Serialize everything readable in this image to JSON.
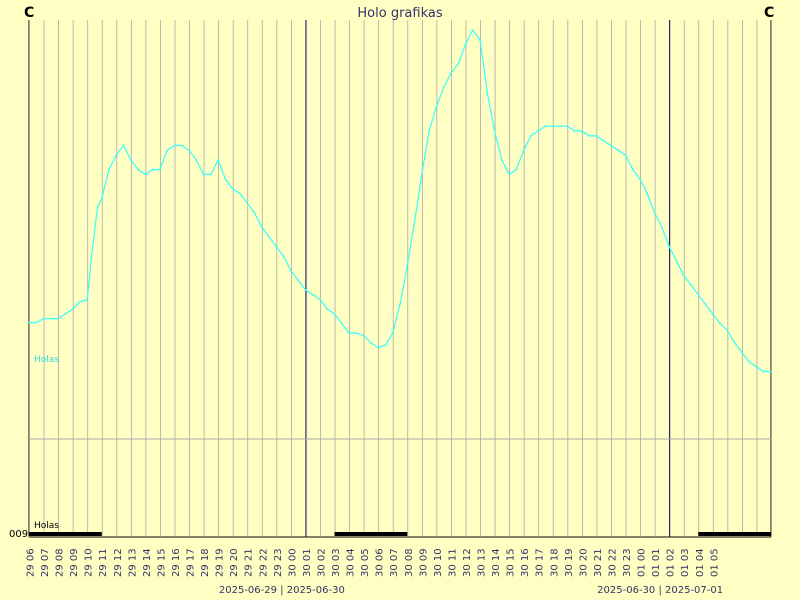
{
  "chart_data": {
    "type": "line",
    "title": "Holo grafikas",
    "corner_left": "C",
    "corner_right": "C",
    "ytick": "009",
    "series": [
      {
        "name": "Holas",
        "color": "#33ffff",
        "points": [
          [
            0,
            0.242
          ],
          [
            0.5,
            0.242
          ],
          [
            1,
            0.25
          ],
          [
            1.5,
            0.25
          ],
          [
            2,
            0.25
          ],
          [
            2.5,
            0.26
          ],
          [
            3,
            0.27
          ],
          [
            3.5,
            0.285
          ],
          [
            4,
            0.29
          ],
          [
            4.3,
            0.38
          ],
          [
            4.7,
            0.48
          ],
          [
            5,
            0.5
          ],
          [
            5.5,
            0.56
          ],
          [
            6,
            0.59
          ],
          [
            6.5,
            0.61
          ],
          [
            7,
            0.58
          ],
          [
            7.5,
            0.56
          ],
          [
            8,
            0.55
          ],
          [
            8.5,
            0.56
          ],
          [
            9,
            0.56
          ],
          [
            9.5,
            0.6
          ],
          [
            10,
            0.61
          ],
          [
            10.5,
            0.61
          ],
          [
            11,
            0.6
          ],
          [
            11.5,
            0.58
          ],
          [
            12,
            0.55
          ],
          [
            12.5,
            0.55
          ],
          [
            13,
            0.58
          ],
          [
            13.5,
            0.54
          ],
          [
            14,
            0.52
          ],
          [
            14.5,
            0.51
          ],
          [
            15,
            0.49
          ],
          [
            15.5,
            0.47
          ],
          [
            16,
            0.44
          ],
          [
            16.5,
            0.42
          ],
          [
            17,
            0.4
          ],
          [
            17.5,
            0.38
          ],
          [
            18,
            0.35
          ],
          [
            18.5,
            0.33
          ],
          [
            19,
            0.31
          ],
          [
            19.5,
            0.3
          ],
          [
            20,
            0.29
          ],
          [
            20.5,
            0.27
          ],
          [
            21,
            0.26
          ],
          [
            21.5,
            0.24
          ],
          [
            22,
            0.22
          ],
          [
            22.5,
            0.22
          ],
          [
            23,
            0.215
          ],
          [
            23.5,
            0.2
          ],
          [
            24,
            0.19
          ],
          [
            24.5,
            0.195
          ],
          [
            25,
            0.22
          ],
          [
            25.5,
            0.28
          ],
          [
            26,
            0.36
          ],
          [
            26.5,
            0.45
          ],
          [
            27,
            0.55
          ],
          [
            27.5,
            0.64
          ],
          [
            28,
            0.69
          ],
          [
            28.5,
            0.73
          ],
          [
            29,
            0.76
          ],
          [
            29.5,
            0.78
          ],
          [
            30,
            0.82
          ],
          [
            30.5,
            0.85
          ],
          [
            31,
            0.83
          ],
          [
            31.5,
            0.72
          ],
          [
            32,
            0.64
          ],
          [
            32.5,
            0.58
          ],
          [
            33,
            0.55
          ],
          [
            33.5,
            0.56
          ],
          [
            34,
            0.6
          ],
          [
            34.5,
            0.63
          ],
          [
            35,
            0.64
          ],
          [
            35.5,
            0.65
          ],
          [
            36,
            0.65
          ],
          [
            36.5,
            0.65
          ],
          [
            37,
            0.65
          ],
          [
            37.5,
            0.64
          ],
          [
            38,
            0.64
          ],
          [
            38.5,
            0.63
          ],
          [
            39,
            0.63
          ],
          [
            39.5,
            0.62
          ],
          [
            40,
            0.61
          ],
          [
            40.5,
            0.6
          ],
          [
            41,
            0.59
          ],
          [
            41.5,
            0.56
          ],
          [
            42,
            0.54
          ],
          [
            42.5,
            0.51
          ],
          [
            43,
            0.47
          ],
          [
            43.5,
            0.44
          ],
          [
            44,
            0.4
          ],
          [
            44.5,
            0.37
          ],
          [
            45,
            0.34
          ],
          [
            45.5,
            0.32
          ],
          [
            46,
            0.3
          ],
          [
            46.5,
            0.28
          ],
          [
            47,
            0.26
          ],
          [
            47.5,
            0.24
          ],
          [
            48,
            0.225
          ],
          [
            48.5,
            0.2
          ],
          [
            49,
            0.18
          ],
          [
            49.5,
            0.16
          ],
          [
            50,
            0.15
          ],
          [
            50.5,
            0.14
          ],
          [
            51,
            0.14
          ]
        ]
      }
    ],
    "status": {
      "name": "Holas",
      "segments": [
        [
          0,
          5
        ],
        [
          21,
          26
        ],
        [
          46,
          51
        ]
      ]
    },
    "x_ticks": [
      "29 06",
      "29 07",
      "29 08",
      "29 09",
      "29 10",
      "29 11",
      "29 12",
      "29 13",
      "29 14",
      "29 15",
      "29 16",
      "29 17",
      "29 18",
      "29 19",
      "29 20",
      "29 21",
      "29 22",
      "29 23",
      "30 00",
      "30 01",
      "30 02",
      "30 03",
      "30 04",
      "30 05",
      "30 06",
      "30 07",
      "30 08",
      "30 09",
      "30 10",
      "30 11",
      "30 12",
      "30 13",
      "30 14",
      "30 15",
      "30 16",
      "30 17",
      "30 18",
      "30 19",
      "30 20",
      "30 21",
      "30 22",
      "30 23",
      "01 00",
      "01 01",
      "01 02",
      "01 03",
      "01 04",
      "01 05"
    ],
    "reference_line": 0.0,
    "date_labels": [
      {
        "text": "2025-06-29 | 2025-06-30",
        "at": 18
      },
      {
        "text": "2025-06-30 | 2025-07-01",
        "at": 44
      }
    ],
    "day_boundaries": [
      19,
      44
    ]
  }
}
